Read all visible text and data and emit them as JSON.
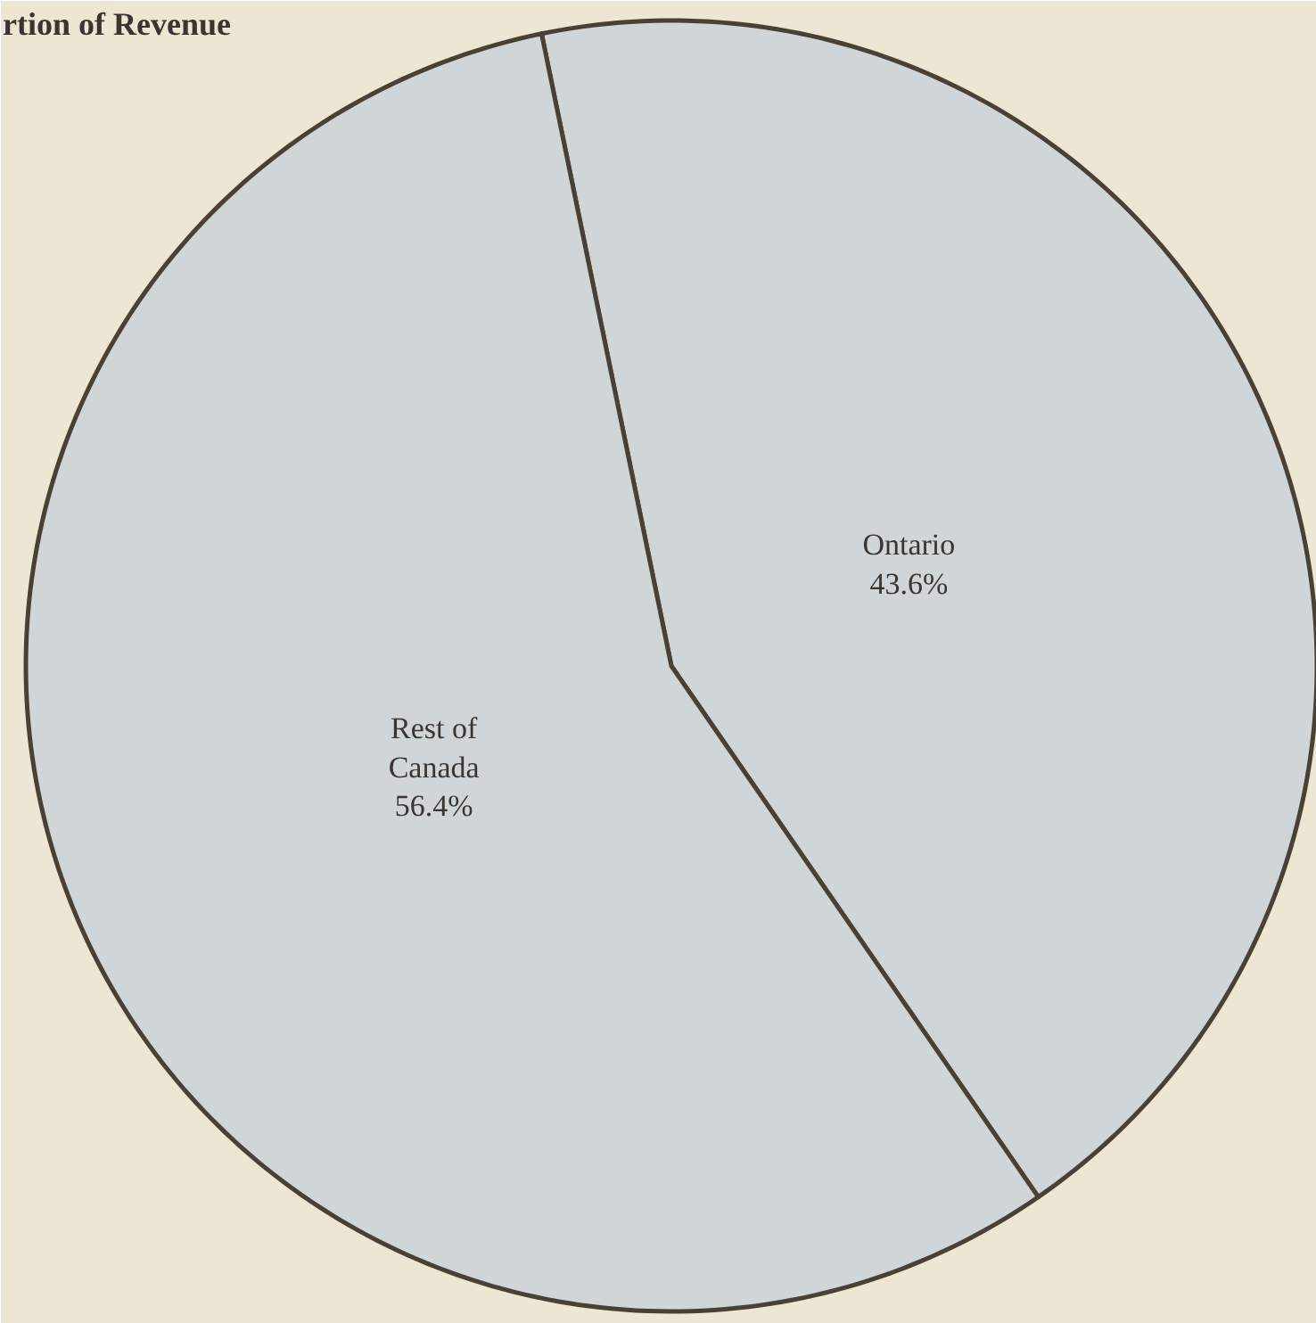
{
  "chart_data": {
    "type": "pie",
    "title": "rtion of Revenue",
    "categories": [
      "Ontario",
      "Rest of Canada"
    ],
    "values": [
      43.6,
      56.4
    ],
    "colors": [
      "#d0d5d7",
      "#d0d5d7"
    ],
    "value_labels": [
      "43.6%",
      "56.4%"
    ]
  }
}
